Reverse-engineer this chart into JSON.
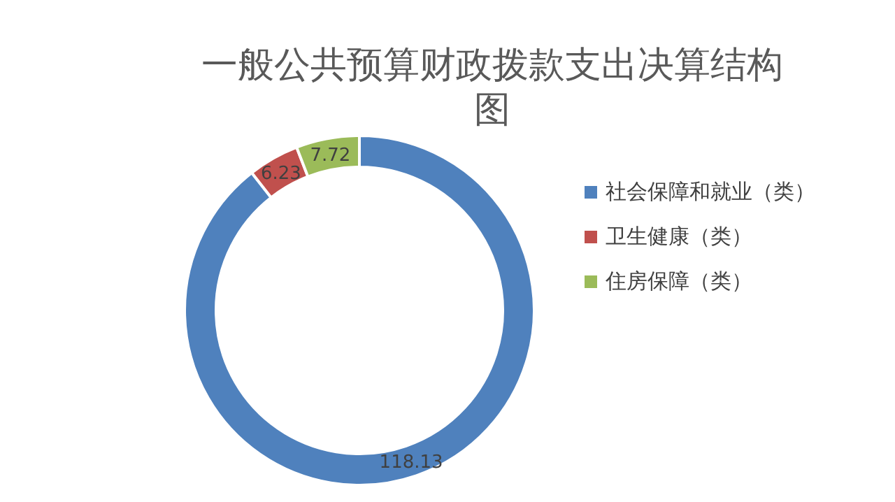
{
  "chart_data": {
    "type": "donut",
    "title": "一般公共预算财政拨款支出决算结构图",
    "categories": [
      "社会保障和就业（类）",
      "卫生健康（类）",
      "住房保障（类）"
    ],
    "values": [
      118.13,
      6.23,
      7.72
    ],
    "colors": [
      "#4f81bd",
      "#c0504d",
      "#9bbb59"
    ],
    "data_labels": true,
    "legend": "right"
  }
}
